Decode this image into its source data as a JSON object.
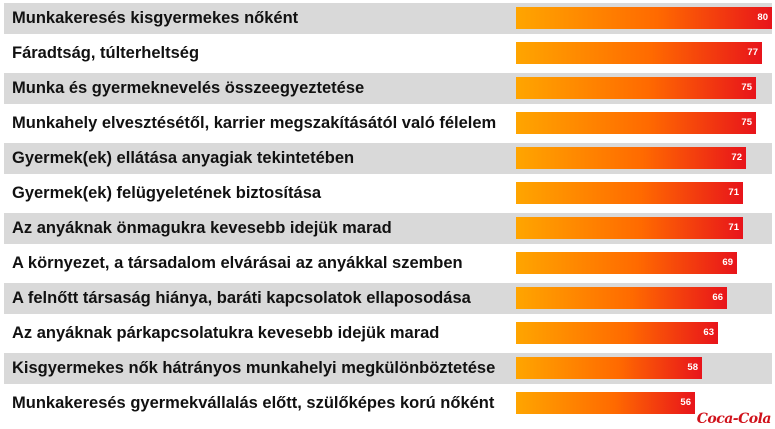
{
  "chart_data": {
    "type": "bar",
    "orientation": "horizontal",
    "categories": [
      "Munkakeresés kisgyermekes nőként",
      "Fáradtság, túlterheltség",
      "Munka és gyermeknevelés összeegyeztetése",
      "Munkahely elvesztésétől, karrier megszakításától való félelem",
      "Gyermek(ek) ellátása anyagiak tekintetében",
      "Gyermek(ek) felügyeletének biztosítása",
      "Az anyáknak önmagukra kevesebb idejük marad",
      "A környezet, a társadalom elvárásai az anyákkal szemben",
      "A felnőtt társaság hiánya, baráti kapcsolatok ellaposodása",
      "Az anyáknak párkapcsolatukra kevesebb idejük marad",
      "Kisgyermekes nők hátrányos munkahelyi megkülönböztetése",
      "Munkakeresés gyermekvállalás előtt, szülőképes korú nőként"
    ],
    "values": [
      80,
      77,
      75,
      75,
      72,
      71,
      71,
      69,
      66,
      63,
      58,
      56
    ],
    "xlim": [
      0,
      80
    ],
    "grid": false,
    "bar_color_start": "#ffa500",
    "bar_color_end": "#e8141b",
    "row_stripe_color": "#d9d9d9"
  },
  "logo_text": "Coca-Cola",
  "logo_color": "#d0121b"
}
